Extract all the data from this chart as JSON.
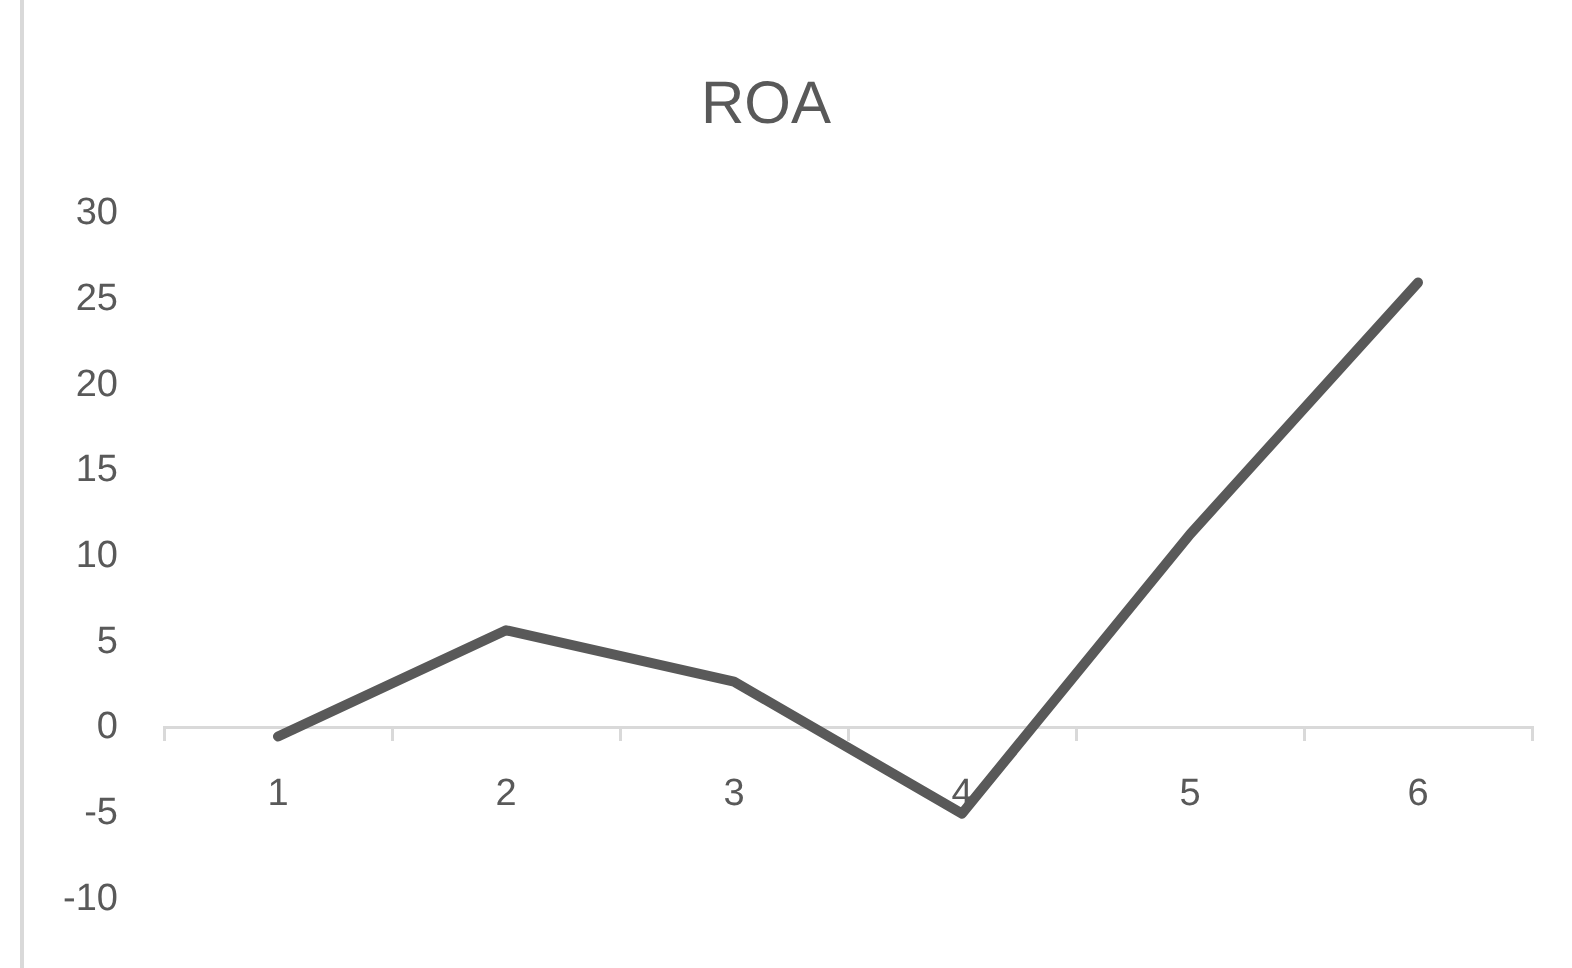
{
  "chart_data": {
    "type": "line",
    "title": "ROA",
    "categories": [
      "1",
      "2",
      "3",
      "4",
      "5",
      "6"
    ],
    "series": [
      {
        "color": "#595959",
        "values": [
          -0.5,
          5.7,
          2.7,
          -5,
          11.3,
          26
        ]
      }
    ],
    "ylim": [
      -10,
      30
    ],
    "yticks": [
      -10,
      -5,
      0,
      5,
      10,
      15,
      20,
      25,
      30
    ],
    "grid": false,
    "legend": false,
    "marker": "none"
  }
}
